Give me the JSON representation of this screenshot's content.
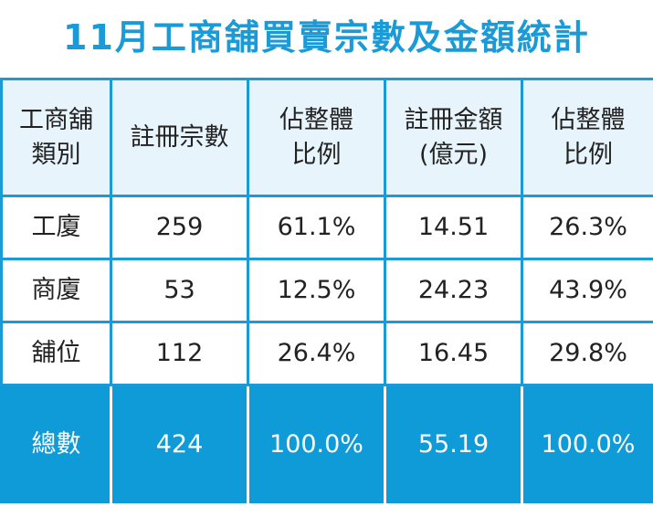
{
  "title": "11月工商舖買賣宗數及金額統計",
  "table": {
    "header": [
      "工商舖\n類別",
      "註冊宗數",
      "佔整體\n比例",
      "註冊金額\n(億元)",
      "佔整體\n比例"
    ],
    "rows": [
      [
        "工廈",
        "259",
        "61.1%",
        "14.51",
        "26.3%"
      ],
      [
        "商廈",
        "53",
        "12.5%",
        "24.23",
        "43.9%"
      ],
      [
        "舖位",
        "112",
        "26.4%",
        "16.45",
        "29.8%"
      ]
    ],
    "total": [
      "總數",
      "424",
      "100.0%",
      "55.19",
      "100.0%"
    ]
  }
}
